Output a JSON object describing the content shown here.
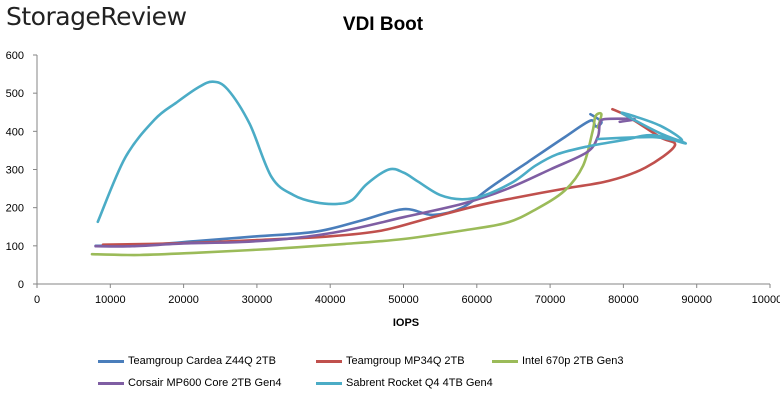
{
  "logo_text": "StorageReview",
  "chart_data": {
    "type": "line",
    "title": "VDI Boot",
    "xlabel": "IOPS",
    "ylabel": "",
    "xlim": [
      0,
      100000
    ],
    "ylim": [
      0,
      600
    ],
    "x_ticks": [
      0,
      10000,
      20000,
      30000,
      40000,
      50000,
      60000,
      70000,
      80000,
      90000,
      100000
    ],
    "x_tick_labels": [
      "0",
      "10000",
      "20000",
      "30000",
      "40000",
      "50000",
      "60000",
      "70000",
      "80000",
      "90000",
      "100000"
    ],
    "y_ticks": [
      0,
      100,
      200,
      300,
      400,
      500,
      600
    ],
    "y_tick_labels": [
      "0",
      "100",
      "200",
      "300",
      "400",
      "500",
      "600"
    ],
    "grid": false,
    "legend_position": "bottom",
    "series": [
      {
        "name": "Teamgroup Cardea Z44Q 2TB",
        "color": "#4a7ebb",
        "points": [
          [
            8000,
            100
          ],
          [
            15000,
            103
          ],
          [
            22000,
            113
          ],
          [
            30000,
            125
          ],
          [
            38000,
            137
          ],
          [
            44000,
            165
          ],
          [
            50000,
            196
          ],
          [
            54000,
            181
          ],
          [
            58000,
            200
          ],
          [
            62000,
            255
          ],
          [
            67000,
            320
          ],
          [
            72000,
            385
          ],
          [
            75500,
            428
          ],
          [
            76200,
            413
          ],
          [
            77000,
            425
          ],
          [
            75500,
            445
          ]
        ]
      },
      {
        "name": "Teamgroup MP34Q 2TB",
        "color": "#c0504d",
        "points": [
          [
            9000,
            103
          ],
          [
            20000,
            107
          ],
          [
            30000,
            115
          ],
          [
            40000,
            125
          ],
          [
            47000,
            140
          ],
          [
            53000,
            170
          ],
          [
            60000,
            205
          ],
          [
            65000,
            225
          ],
          [
            72000,
            250
          ],
          [
            78000,
            270
          ],
          [
            83000,
            305
          ],
          [
            87000,
            362
          ],
          [
            85000,
            385
          ],
          [
            80500,
            440
          ],
          [
            78500,
            458
          ]
        ]
      },
      {
        "name": "Intel 670p 2TB Gen3",
        "color": "#9bbb59",
        "points": [
          [
            7500,
            78
          ],
          [
            14000,
            76
          ],
          [
            22000,
            82
          ],
          [
            32000,
            92
          ],
          [
            42000,
            105
          ],
          [
            50000,
            118
          ],
          [
            58000,
            140
          ],
          [
            64000,
            160
          ],
          [
            68000,
            195
          ],
          [
            72000,
            245
          ],
          [
            74500,
            310
          ],
          [
            75800,
            400
          ],
          [
            76200,
            440
          ],
          [
            77000,
            445
          ],
          [
            76500,
            410
          ]
        ]
      },
      {
        "name": "Corsair MP600 Core 2TB Gen4",
        "color": "#7f5ea3",
        "points": [
          [
            8000,
            99
          ],
          [
            13000,
            99
          ],
          [
            20000,
            106
          ],
          [
            28000,
            110
          ],
          [
            35000,
            120
          ],
          [
            42000,
            140
          ],
          [
            50000,
            175
          ],
          [
            58000,
            210
          ],
          [
            64000,
            248
          ],
          [
            70000,
            300
          ],
          [
            75000,
            345
          ],
          [
            76500,
            385
          ],
          [
            76800,
            420
          ],
          [
            77500,
            432
          ],
          [
            81500,
            432
          ],
          [
            79500,
            425
          ]
        ]
      },
      {
        "name": "Sabrent Rocket Q4 4TB Gen4",
        "color": "#4bacc6",
        "points": [
          [
            8300,
            163
          ],
          [
            12000,
            330
          ],
          [
            16000,
            430
          ],
          [
            19000,
            475
          ],
          [
            22000,
            515
          ],
          [
            24000,
            530
          ],
          [
            26000,
            510
          ],
          [
            29000,
            420
          ],
          [
            32000,
            280
          ],
          [
            35000,
            233
          ],
          [
            38000,
            214
          ],
          [
            41000,
            210
          ],
          [
            43000,
            220
          ],
          [
            45000,
            262
          ],
          [
            48000,
            300
          ],
          [
            50000,
            292
          ],
          [
            52000,
            268
          ],
          [
            55000,
            233
          ],
          [
            58000,
            222
          ],
          [
            61000,
            232
          ],
          [
            65000,
            268
          ],
          [
            68000,
            310
          ],
          [
            71000,
            340
          ],
          [
            75000,
            360
          ],
          [
            80000,
            377
          ],
          [
            84000,
            390
          ],
          [
            88500,
            368
          ],
          [
            85000,
            395
          ],
          [
            81000,
            435
          ],
          [
            80000,
            448
          ],
          [
            85000,
            415
          ],
          [
            88000,
            375
          ],
          [
            84000,
            385
          ],
          [
            76500,
            380
          ]
        ]
      }
    ]
  }
}
